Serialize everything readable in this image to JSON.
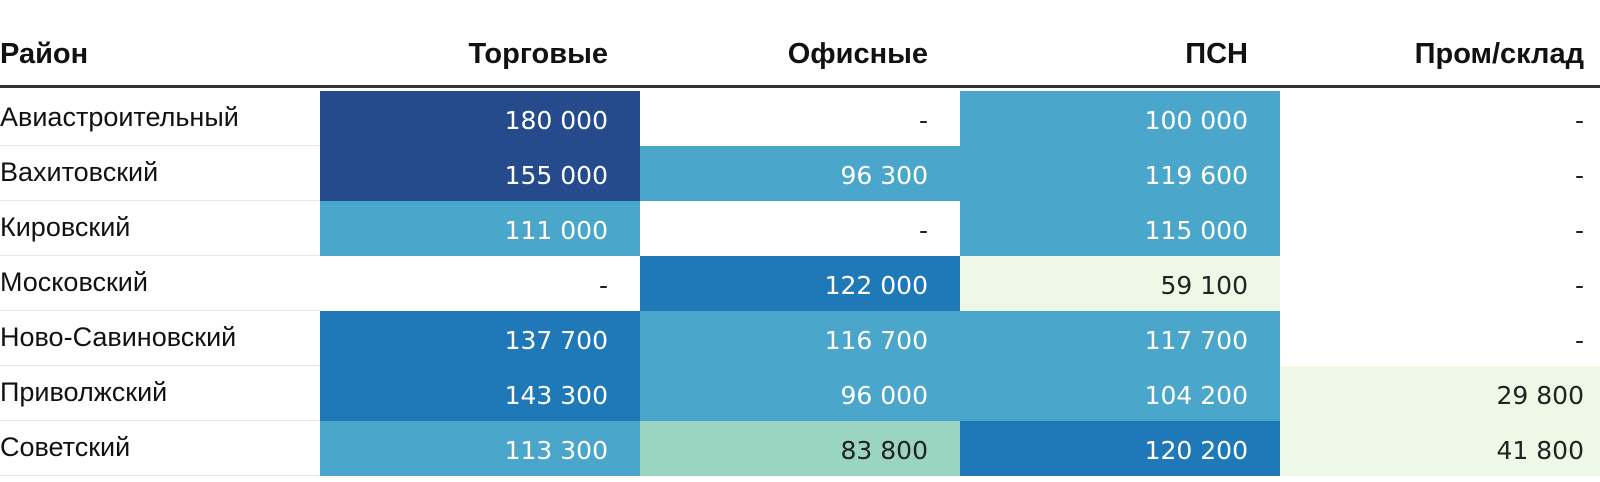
{
  "table": {
    "headers": [
      "Район",
      "Торговые",
      "Офисные",
      "ПСН",
      "Пром/склад"
    ],
    "rows": [
      {
        "district": "Авиастроительный",
        "cells": [
          {
            "value": "180 000",
            "color": "#254b8c",
            "text_color": "#ffffff"
          },
          {
            "value": "-",
            "color": "#ffffff",
            "text_color": "#222222"
          },
          {
            "value": "100 000",
            "color": "#4aa6cb",
            "text_color": "#ffffff"
          },
          {
            "value": "-",
            "color": "#ffffff",
            "text_color": "#222222"
          }
        ]
      },
      {
        "district": "Вахитовский",
        "cells": [
          {
            "value": "155 000",
            "color": "#254b8c",
            "text_color": "#ffffff"
          },
          {
            "value": "96 300",
            "color": "#4aa6cb",
            "text_color": "#ffffff"
          },
          {
            "value": "119 600",
            "color": "#4aa6cb",
            "text_color": "#ffffff"
          },
          {
            "value": "-",
            "color": "#ffffff",
            "text_color": "#222222"
          }
        ]
      },
      {
        "district": "Кировский",
        "cells": [
          {
            "value": "111 000",
            "color": "#4aa6cb",
            "text_color": "#ffffff"
          },
          {
            "value": "-",
            "color": "#ffffff",
            "text_color": "#222222"
          },
          {
            "value": "115 000",
            "color": "#4aa6cb",
            "text_color": "#ffffff"
          },
          {
            "value": "-",
            "color": "#ffffff",
            "text_color": "#222222"
          }
        ]
      },
      {
        "district": "Московский",
        "cells": [
          {
            "value": "-",
            "color": "#ffffff",
            "text_color": "#222222"
          },
          {
            "value": "122 000",
            "color": "#1f78b8",
            "text_color": "#ffffff"
          },
          {
            "value": "59 100",
            "color": "#eef8e6",
            "text_color": "#222222"
          },
          {
            "value": "-",
            "color": "#ffffff",
            "text_color": "#222222"
          }
        ]
      },
      {
        "district": "Ново-Савиновский",
        "cells": [
          {
            "value": "137 700",
            "color": "#1f78b8",
            "text_color": "#ffffff"
          },
          {
            "value": "116 700",
            "color": "#4aa6cb",
            "text_color": "#ffffff"
          },
          {
            "value": "117 700",
            "color": "#4aa6cb",
            "text_color": "#ffffff"
          },
          {
            "value": "-",
            "color": "#ffffff",
            "text_color": "#222222"
          }
        ]
      },
      {
        "district": "Приволжский",
        "cells": [
          {
            "value": "143 300",
            "color": "#1f78b8",
            "text_color": "#ffffff"
          },
          {
            "value": "96 000",
            "color": "#4aa6cb",
            "text_color": "#ffffff"
          },
          {
            "value": "104 200",
            "color": "#4aa6cb",
            "text_color": "#ffffff"
          },
          {
            "value": "29 800",
            "color": "#eef8e6",
            "text_color": "#222222"
          }
        ]
      },
      {
        "district": "Советский",
        "cells": [
          {
            "value": "113 300",
            "color": "#4aa6cb",
            "text_color": "#ffffff"
          },
          {
            "value": "83 800",
            "color": "#99d5c0",
            "text_color": "#222222"
          },
          {
            "value": "120 200",
            "color": "#1f78b8",
            "text_color": "#ffffff"
          },
          {
            "value": "41 800",
            "color": "#eef8e6",
            "text_color": "#222222"
          }
        ]
      }
    ]
  }
}
